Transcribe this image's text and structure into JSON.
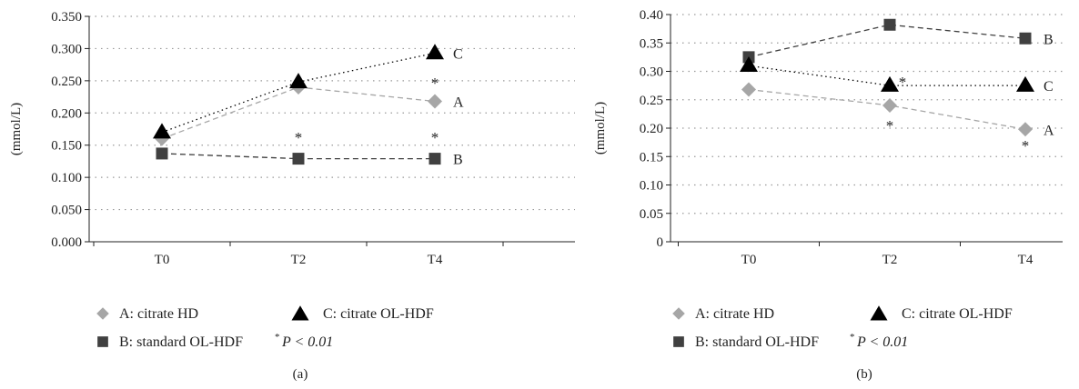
{
  "chart_data": [
    {
      "type": "line",
      "panel_label": "(a)",
      "ylabel": "(mmol/L)",
      "categories": [
        "T0",
        "T2",
        "T4"
      ],
      "ylim": [
        0,
        0.35
      ],
      "yticks": [
        "0.000",
        "0.050",
        "0.100",
        "0.150",
        "0.200",
        "0.250",
        "0.300",
        "0.350"
      ],
      "grid": true,
      "series": [
        {
          "name": "A: citrate HD",
          "values": [
            0.16,
            0.24,
            0.218
          ],
          "end_label": "A",
          "color": "#a6a6a6",
          "marker": "diamond",
          "dash": "dashed"
        },
        {
          "name": "B: standard OL-HDF",
          "values": [
            0.137,
            0.129,
            0.129
          ],
          "end_label": "B",
          "color": "#404040",
          "marker": "square",
          "dash": "dashed"
        },
        {
          "name": "C: citrate OL-HDF",
          "values": [
            0.17,
            0.248,
            0.293
          ],
          "end_label": "C",
          "color": "#000000",
          "marker": "triangle",
          "dash": "dotted"
        }
      ],
      "significance_marks": [
        {
          "x": "T2",
          "y": 0.162,
          "label": "*"
        },
        {
          "x": "T4",
          "y": 0.247,
          "label": "*"
        },
        {
          "x": "T4",
          "y": 0.162,
          "label": "*"
        }
      ]
    },
    {
      "type": "line",
      "panel_label": "(b)",
      "ylabel": "(mmol/L)",
      "categories": [
        "T0",
        "T2",
        "T4"
      ],
      "ylim": [
        0,
        0.4
      ],
      "yticks": [
        "0",
        "0.05",
        "0.10",
        "0.15",
        "0.20",
        "0.25",
        "0.30",
        "0.35",
        "0.40"
      ],
      "grid": true,
      "series": [
        {
          "name": "A: citrate HD",
          "values": [
            0.268,
            0.24,
            0.198
          ],
          "end_label": "A",
          "color": "#a6a6a6",
          "marker": "diamond",
          "dash": "dashed"
        },
        {
          "name": "B: standard OL-HDF",
          "values": [
            0.325,
            0.382,
            0.358
          ],
          "end_label": "B",
          "color": "#404040",
          "marker": "square",
          "dash": "dashed"
        },
        {
          "name": "C: citrate OL-HDF",
          "values": [
            0.31,
            0.275,
            0.275
          ],
          "end_label": "C",
          "color": "#000000",
          "marker": "triangle",
          "dash": "dotted"
        }
      ],
      "significance_marks": [
        {
          "x": "T2",
          "y": 0.282,
          "label": "*"
        },
        {
          "x": "T2",
          "y": 0.205,
          "label": "*"
        },
        {
          "x": "T4",
          "y": 0.17,
          "label": "*"
        }
      ]
    }
  ],
  "legend": {
    "items": [
      {
        "label": "A: citrate HD",
        "marker": "diamond"
      },
      {
        "label": "C: citrate OL-HDF",
        "marker": "triangle"
      },
      {
        "label": "B: standard OL-HDF",
        "marker": "square"
      }
    ],
    "note_star": "*",
    "note_text": "P < 0.01"
  }
}
